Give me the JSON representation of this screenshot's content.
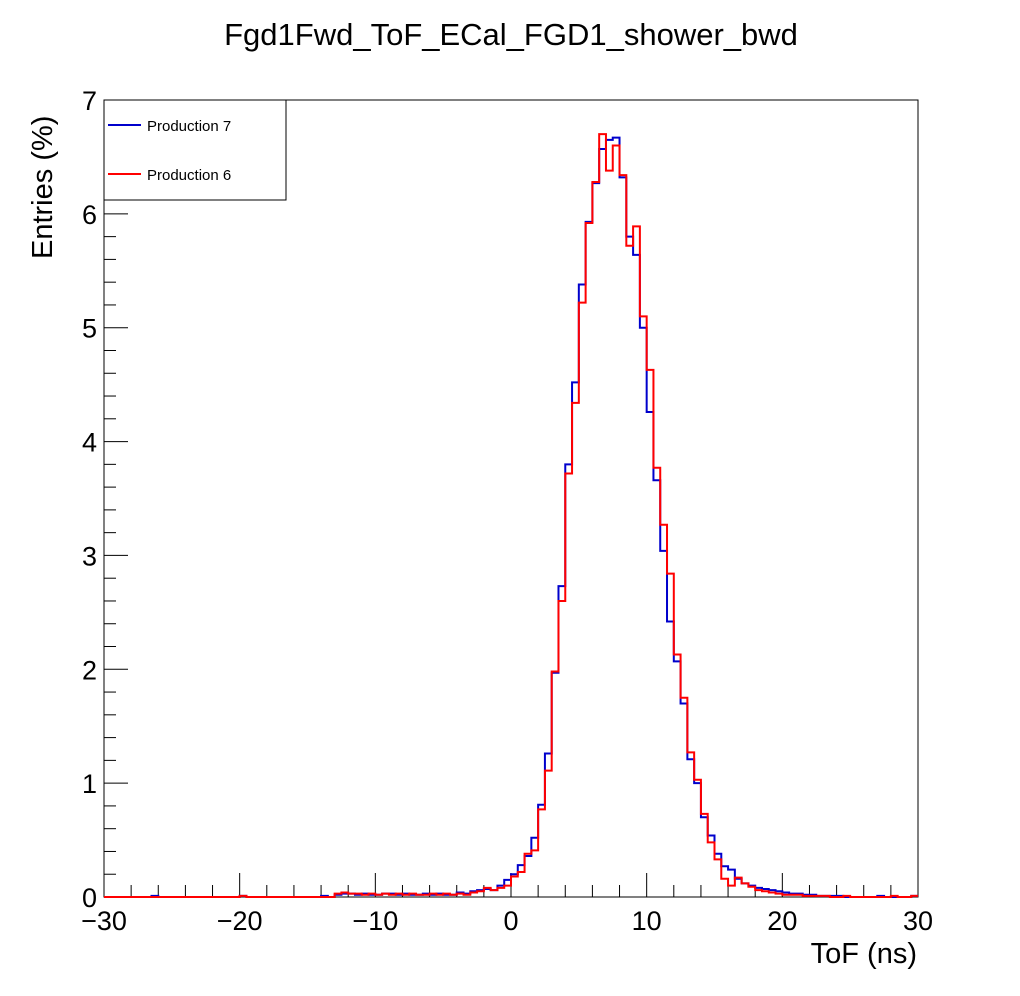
{
  "chart_data": {
    "type": "line",
    "title": "Fgd1Fwd_ToF_ECal_FGD1_shower_bwd",
    "xlabel": "ToF (ns)",
    "ylabel": "Entries (%)",
    "xlim": [
      -30,
      30
    ],
    "ylim": [
      0,
      7
    ],
    "x_ticks": [
      -30,
      -20,
      -10,
      0,
      10,
      20,
      30
    ],
    "x_tick_labels": [
      "−30",
      "−20",
      "−10",
      "0",
      "10",
      "20",
      "30"
    ],
    "y_ticks": [
      0,
      1,
      2,
      3,
      4,
      5,
      6,
      7
    ],
    "y_tick_labels": [
      "0",
      "1",
      "2",
      "3",
      "4",
      "5",
      "6",
      "7"
    ],
    "bin_width": 0.5,
    "legend_position": "top-left",
    "grid": false,
    "bin_low_edges": [
      -30,
      -29.5,
      -29,
      -28.5,
      -28,
      -27.5,
      -27,
      -26.5,
      -26,
      -25.5,
      -25,
      -24.5,
      -24,
      -23.5,
      -23,
      -22.5,
      -22,
      -21.5,
      -21,
      -20.5,
      -20,
      -19.5,
      -19,
      -18.5,
      -18,
      -17.5,
      -17,
      -16.5,
      -16,
      -15.5,
      -15,
      -14.5,
      -14,
      -13.5,
      -13,
      -12.5,
      -12,
      -11.5,
      -11,
      -10.5,
      -10,
      -9.5,
      -9,
      -8.5,
      -8,
      -7.5,
      -7,
      -6.5,
      -6,
      -5.5,
      -5,
      -4.5,
      -4,
      -3.5,
      -3,
      -2.5,
      -2,
      -1.5,
      -1,
      -0.5,
      0,
      0.5,
      1,
      1.5,
      2,
      2.5,
      3,
      3.5,
      4,
      4.5,
      5,
      5.5,
      6,
      6.5,
      7,
      7.5,
      8,
      8.5,
      9,
      9.5,
      10,
      10.5,
      11,
      11.5,
      12,
      12.5,
      13,
      13.5,
      14,
      14.5,
      15,
      15.5,
      16,
      16.5,
      17,
      17.5,
      18,
      18.5,
      19,
      19.5,
      20,
      20.5,
      21,
      21.5,
      22,
      22.5,
      23,
      23.5,
      24,
      24.5,
      25,
      25.5,
      26,
      26.5,
      27,
      27.5,
      28,
      28.5,
      29,
      29.5
    ],
    "series": [
      {
        "name": "Production 7",
        "color": "#0000cc",
        "values": [
          0,
          0,
          0,
          0,
          0,
          0,
          0,
          0.01,
          0,
          0,
          0,
          0,
          0,
          0,
          0,
          0,
          0,
          0,
          0,
          0,
          0.01,
          0,
          0,
          0,
          0,
          0,
          0,
          0,
          0,
          0,
          0,
          0,
          0.01,
          0,
          0.02,
          0.03,
          0.03,
          0.02,
          0.03,
          0.02,
          0.02,
          0.03,
          0.03,
          0.02,
          0.03,
          0.02,
          0.02,
          0.03,
          0.02,
          0.03,
          0.02,
          0.02,
          0.04,
          0.03,
          0.05,
          0.06,
          0.07,
          0.06,
          0.1,
          0.15,
          0.2,
          0.28,
          0.36,
          0.52,
          0.81,
          1.26,
          1.97,
          2.73,
          3.8,
          4.52,
          5.38,
          5.93,
          6.27,
          6.57,
          6.65,
          6.67,
          6.32,
          5.8,
          5.64,
          5.0,
          4.26,
          3.66,
          3.04,
          2.42,
          2.07,
          1.7,
          1.21,
          1.0,
          0.7,
          0.54,
          0.38,
          0.27,
          0.24,
          0.16,
          0.12,
          0.1,
          0.08,
          0.07,
          0.06,
          0.05,
          0.04,
          0.03,
          0.03,
          0.02,
          0.02,
          0.01,
          0.01,
          0.01,
          0.01,
          0,
          0,
          0,
          0,
          0,
          0.01,
          0,
          0,
          0,
          0,
          0.01
        ]
      },
      {
        "name": "Production 6",
        "color": "#ff0000",
        "values": [
          0,
          0,
          0,
          0,
          0,
          0,
          0,
          0,
          0,
          0,
          0,
          0,
          0,
          0,
          0,
          0,
          0,
          0,
          0,
          0,
          0.01,
          0,
          0,
          0,
          0,
          0,
          0,
          0,
          0,
          0,
          0,
          0,
          0,
          0,
          0.03,
          0.04,
          0.03,
          0.03,
          0.02,
          0.03,
          0.02,
          0.03,
          0.02,
          0.03,
          0.02,
          0.03,
          0.02,
          0.02,
          0.03,
          0.02,
          0.03,
          0.02,
          0.03,
          0.02,
          0.04,
          0.05,
          0.08,
          0.06,
          0.08,
          0.1,
          0.18,
          0.22,
          0.38,
          0.41,
          0.77,
          1.11,
          1.98,
          2.6,
          3.72,
          4.34,
          5.22,
          5.92,
          6.28,
          6.7,
          6.38,
          6.6,
          6.34,
          5.72,
          5.89,
          5.1,
          4.63,
          3.77,
          3.27,
          2.84,
          2.13,
          1.75,
          1.27,
          1.03,
          0.73,
          0.48,
          0.33,
          0.16,
          0.1,
          0.17,
          0.12,
          0.09,
          0.06,
          0.05,
          0.04,
          0.03,
          0.02,
          0.02,
          0.02,
          0.01,
          0.01,
          0.01,
          0.01,
          0,
          0,
          0.01,
          0,
          0,
          0,
          0,
          0,
          0,
          0.01,
          0,
          0,
          0.01
        ]
      }
    ]
  }
}
